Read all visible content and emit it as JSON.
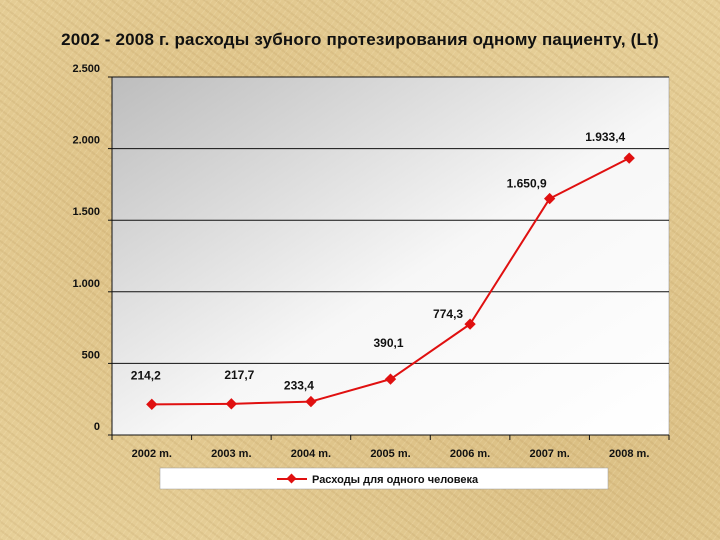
{
  "title": "2002 - 2008 г. расходы зубного протезирования одному пациенту, (Lt)",
  "chart_data": {
    "type": "line",
    "title": "2002 - 2008 г. расходы зубного протезирования одному пациенту, (Lt)",
    "xlabel": "",
    "ylabel": "",
    "categories": [
      "2002 m.",
      "2003 m.",
      "2004 m.",
      "2005 m.",
      "2006 m.",
      "2007 m.",
      "2008 m."
    ],
    "series": [
      {
        "name": "Расходы для одного человека",
        "values": [
          214.2,
          217.7,
          233.4,
          390.1,
          774.3,
          1650.9,
          1933.4
        ],
        "labels": [
          "214,2",
          "217,7",
          "233,4",
          "390,1",
          "774,3",
          "1.650,9",
          "1.933,4"
        ],
        "color": "#e01010"
      }
    ],
    "ylim": [
      0,
      2500
    ],
    "yticks": [
      0,
      500,
      1000,
      1500,
      2000,
      2500
    ],
    "ytick_labels": [
      "0",
      "500",
      "1.000",
      "1.500",
      "2.000",
      "2.500"
    ],
    "grid": true,
    "legend_position": "bottom",
    "plot_background": "#e0e0e0"
  }
}
